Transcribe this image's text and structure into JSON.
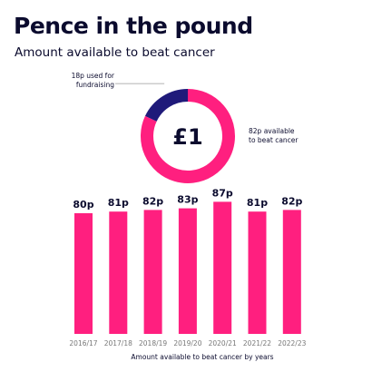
{
  "header": {
    "title": "Pence in the pound",
    "subtitle": "Amount available to beat cancer"
  },
  "colors": {
    "accent": "#ff1f7f",
    "secondary": "#1f1a7a",
    "text": "#0b0b2e",
    "muted": "#777777"
  },
  "chart_data": [
    {
      "type": "pie",
      "center_label": "£1",
      "slices": [
        {
          "name": "fundraising",
          "value": 18,
          "label": "18p used for fundraising",
          "color": "#1f1a7a"
        },
        {
          "name": "beat cancer",
          "value": 82,
          "label": "82p available to beat cancer",
          "color": "#ff1f7f"
        }
      ]
    },
    {
      "type": "bar",
      "categories": [
        "2016/17",
        "2017/18",
        "2018/19",
        "2019/20",
        "2020/21",
        "2021/22",
        "2022/23"
      ],
      "values": [
        80,
        81,
        82,
        83,
        87,
        81,
        82
      ],
      "data_labels": [
        "80p",
        "81p",
        "82p",
        "83p",
        "87p",
        "81p",
        "82p"
      ],
      "xlabel": "Amount available to beat cancer by years",
      "ylabel": "",
      "grid": false
    }
  ]
}
